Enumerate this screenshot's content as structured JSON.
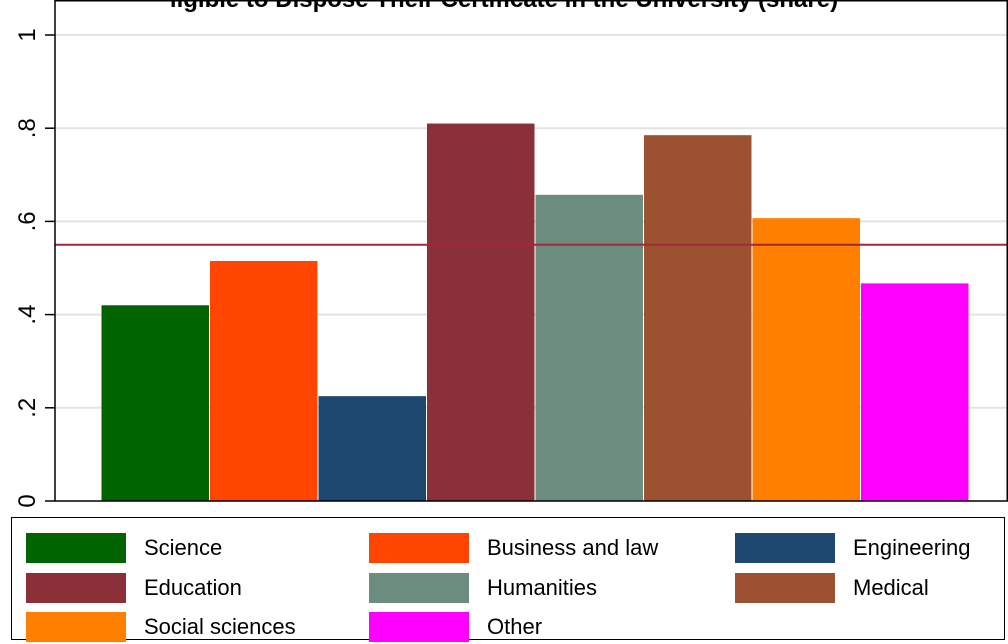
{
  "chart_data": {
    "type": "bar",
    "title": "ligible to Dispose Their Certificate in the University (share)",
    "categories": [
      "Science",
      "Business and law",
      "Engineering",
      "Education",
      "Humanities",
      "Medical",
      "Social sciences",
      "Other"
    ],
    "values": [
      0.42,
      0.515,
      0.225,
      0.81,
      0.657,
      0.785,
      0.607,
      0.467
    ],
    "colors": [
      "#006400",
      "#ff4500",
      "#1e4770",
      "#8b3038",
      "#6d8c80",
      "#9c5230",
      "#ff8000",
      "#ff00ff"
    ],
    "reference_line": {
      "value": 0.55,
      "color": "#a3263b"
    },
    "ylim": [
      0,
      1
    ],
    "yticks": [
      0,
      0.2,
      0.4,
      0.6,
      0.8,
      1
    ],
    "ytick_labels": [
      "0",
      ".2",
      ".4",
      ".6",
      ".8",
      "1"
    ],
    "xlabel": "",
    "ylabel": "",
    "grid": true,
    "legend_position": "bottom"
  }
}
